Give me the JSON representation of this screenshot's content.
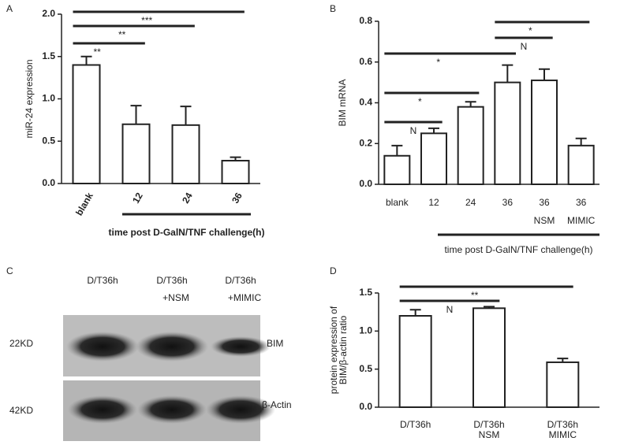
{
  "chart_data": [
    {
      "type": "bar",
      "panel": "A",
      "y_label": "miR-24 expression",
      "x_label": "time post D-GalN/TNF challenge(h)",
      "categories": [
        "blank",
        "12",
        "24",
        "36"
      ],
      "values": [
        1.4,
        0.7,
        0.69,
        0.27
      ],
      "errors": [
        0.1,
        0.22,
        0.22,
        0.04
      ],
      "ylim": [
        0,
        2.0
      ],
      "yticks": [
        {
          "value": 0,
          "label": "0.0"
        },
        {
          "value": 0.5,
          "label": "0.5"
        },
        {
          "value": 1,
          "label": "1.0"
        },
        {
          "value": 1.5,
          "label": "1.5"
        },
        {
          "value": 2,
          "label": "2.0"
        }
      ],
      "annotations": [
        {
          "text": "**",
          "from": 0,
          "to": 1
        },
        {
          "text": "**",
          "from": 0,
          "to": 2
        },
        {
          "text": "***",
          "from": 0,
          "to": 3
        }
      ]
    },
    {
      "type": "bar",
      "panel": "B",
      "y_label": "BIM mRNA",
      "x_label": "time post D-GalN/TNF challenge(h)",
      "categories": [
        "blank",
        "12",
        "24",
        "36",
        "36",
        "36"
      ],
      "category_sublabels": [
        null,
        null,
        null,
        null,
        "NSM",
        "MIMIC"
      ],
      "values": [
        0.14,
        0.25,
        0.38,
        0.5,
        0.51,
        0.19
      ],
      "errors": [
        0.05,
        0.025,
        0.025,
        0.085,
        0.055,
        0.035
      ],
      "ylim": [
        0,
        0.8
      ],
      "yticks": [
        {
          "value": 0,
          "label": "0.0"
        },
        0.2,
        0.4,
        0.6,
        0.8
      ],
      "annotations": [
        {
          "text": "N",
          "from": 0,
          "to": 1
        },
        {
          "text": "*",
          "from": 0,
          "to": 2
        },
        {
          "text": "*",
          "from": 0,
          "to": 3
        },
        {
          "text": "N",
          "from": 3,
          "to": 4
        },
        {
          "text": "*",
          "from": 3,
          "to": 5
        }
      ]
    },
    {
      "type": "bar",
      "panel": "D",
      "y_label": [
        "protein expression of",
        "BIM/β-actin ratio"
      ],
      "categories": [
        "D/T36h",
        "D/T36h",
        "D/T36h"
      ],
      "category_sublabels": [
        null,
        "NSM",
        "MIMIC"
      ],
      "values": [
        1.2,
        1.3,
        0.59
      ],
      "errors": [
        0.08,
        0.02,
        0.05
      ],
      "ylim": [
        0,
        1.5
      ],
      "yticks": [
        {
          "value": 0,
          "label": "0.0"
        },
        {
          "value": 0.5,
          "label": "0.5"
        },
        {
          "value": 1,
          "label": "1.0"
        },
        1.5
      ],
      "annotations": [
        {
          "text": "N",
          "from": 0,
          "to": 1
        },
        {
          "text": "**",
          "from": 0,
          "to": 2
        }
      ]
    }
  ],
  "blot": {
    "panel": "C",
    "lanes": [
      {
        "label": "D/T36h"
      },
      {
        "label": "D/T36h",
        "sub": "+NSM"
      },
      {
        "label": "D/T36h",
        "sub": "+MIMIC"
      }
    ],
    "rows": [
      {
        "size": "22KD",
        "protein": "BIM"
      },
      {
        "size": "42KD",
        "protein": "β-Actin"
      }
    ]
  }
}
